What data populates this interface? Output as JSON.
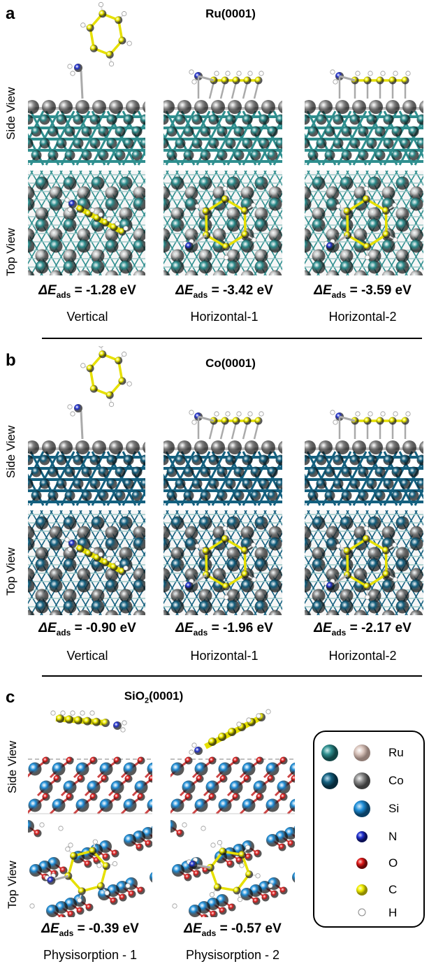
{
  "colors": {
    "ru": "#2f8f8f",
    "ru_light": "#d9c4bc",
    "co": "#14607f",
    "co_grey": "#8a8a8a",
    "si": "#1e8ed8",
    "n": "#1f2fcf",
    "o": "#e01818",
    "c": "#f2ef00",
    "h": "#ffffff",
    "bond": "#b8b8b8"
  },
  "panels": [
    {
      "letter": "a",
      "title": "Ru(0001)",
      "side_view_label": "Side View",
      "top_view_label": "Top View",
      "configs": [
        {
          "name": "Vertical",
          "energy_prefix": "ΔE",
          "energy_sub": "ads",
          "energy_value": " = -1.28 eV"
        },
        {
          "name": "Horizontal-1",
          "energy_prefix": "ΔE",
          "energy_sub": "ads",
          "energy_value": " = -3.42 eV"
        },
        {
          "name": "Horizontal-2",
          "energy_prefix": "ΔE",
          "energy_sub": "ads",
          "energy_value": " = -3.59 eV"
        }
      ]
    },
    {
      "letter": "b",
      "title": "Co(0001)",
      "side_view_label": "Side View",
      "top_view_label": "Top View",
      "configs": [
        {
          "name": "Vertical",
          "energy_prefix": "ΔE",
          "energy_sub": "ads",
          "energy_value": " = -0.90 eV"
        },
        {
          "name": "Horizontal-1",
          "energy_prefix": "ΔE",
          "energy_sub": "ads",
          "energy_value": " = -1.96 eV"
        },
        {
          "name": "Horizontal-2",
          "energy_prefix": "ΔE",
          "energy_sub": "ads",
          "energy_value": " = -2.17 eV"
        }
      ]
    },
    {
      "letter": "c",
      "title_main": "SiO",
      "title_sub": "2",
      "title_tail": "(0001)",
      "side_view_label": "Side View",
      "top_view_label": "Top View",
      "configs": [
        {
          "name": "Physisorption - 1",
          "energy_prefix": "ΔE",
          "energy_sub": "ads",
          "energy_value": " = -0.39 eV"
        },
        {
          "name": "Physisorption - 2",
          "energy_prefix": "ΔE",
          "energy_sub": "ads",
          "energy_value": " = -0.57 eV"
        }
      ]
    }
  ],
  "legend": [
    {
      "label": "Ru",
      "icon": "ru-atom-icons"
    },
    {
      "label": "Co",
      "icon": "co-atom-icons"
    },
    {
      "label": "Si",
      "icon": "si-atom-icon"
    },
    {
      "label": "N",
      "icon": "n-atom-icon"
    },
    {
      "label": "O",
      "icon": "o-atom-icon"
    },
    {
      "label": "C",
      "icon": "c-atom-icon"
    },
    {
      "label": "H",
      "icon": "h-atom-icon"
    }
  ]
}
